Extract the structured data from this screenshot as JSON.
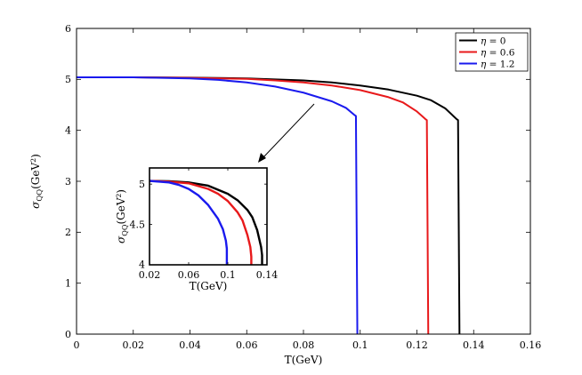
{
  "chart_data": [
    {
      "id": "main",
      "type": "line",
      "title": "",
      "xlabel": "T(GeV)",
      "ylabel": "σQQ(GeV²)",
      "ylabel_main": "σ",
      "ylabel_sub": "QQ",
      "ylabel_unit": "(GeV",
      "ylabel_sup": "2",
      "ylabel_close": ")",
      "xlim": [
        0,
        0.16
      ],
      "ylim": [
        0,
        6
      ],
      "xticks": [
        0,
        0.02,
        0.04,
        0.06,
        0.08,
        0.1,
        0.12,
        0.14,
        0.16
      ],
      "xtick_labels": [
        "0",
        "0.02",
        "0.04",
        "0.06",
        "0.08",
        "0.1",
        "0.12",
        "0.14",
        "0.16"
      ],
      "yticks": [
        0,
        1,
        2,
        3,
        4,
        5,
        6
      ],
      "ytick_labels": [
        "0",
        "1",
        "2",
        "3",
        "4",
        "5",
        "6"
      ],
      "legend": {
        "placement": "top-right",
        "entries": [
          {
            "prefix": "η",
            "text": " = 0",
            "color": "#000000"
          },
          {
            "prefix": "η",
            "text": " = 0.6",
            "color": "#e8191b"
          },
          {
            "prefix": "η",
            "text": " = 1.2",
            "color": "#1a1aee"
          }
        ]
      },
      "series": [
        {
          "name": "η = 0",
          "color": "#000000",
          "x": [
            0,
            0.02,
            0.04,
            0.06,
            0.08,
            0.09,
            0.1,
            0.11,
            0.12,
            0.125,
            0.13,
            0.134,
            0.1345,
            0.135
          ],
          "y": [
            5.04,
            5.04,
            5.035,
            5.02,
            4.98,
            4.94,
            4.88,
            4.8,
            4.68,
            4.59,
            4.43,
            4.22,
            4.2,
            0
          ]
        },
        {
          "name": "η = 0.6",
          "color": "#e8191b",
          "x": [
            0,
            0.02,
            0.04,
            0.06,
            0.07,
            0.08,
            0.09,
            0.1,
            0.11,
            0.115,
            0.12,
            0.123,
            0.1235,
            0.124
          ],
          "y": [
            5.04,
            5.04,
            5.03,
            5.01,
            4.98,
            4.94,
            4.88,
            4.79,
            4.65,
            4.55,
            4.37,
            4.22,
            4.2,
            0
          ]
        },
        {
          "name": "η = 1.2",
          "color": "#1a1aee",
          "x": [
            0,
            0.02,
            0.04,
            0.05,
            0.06,
            0.07,
            0.08,
            0.09,
            0.095,
            0.098,
            0.0985,
            0.099
          ],
          "y": [
            5.04,
            5.04,
            5.02,
            4.99,
            4.94,
            4.86,
            4.74,
            4.57,
            4.44,
            4.3,
            4.28,
            0
          ]
        }
      ]
    },
    {
      "id": "inset",
      "type": "line",
      "title": "",
      "xlabel": "T(GeV)",
      "ylabel_main": "σ",
      "ylabel_sub": "QQ",
      "ylabel_unit": "(GeV",
      "ylabel_sup": "2",
      "ylabel_close": ")",
      "xlim": [
        0.02,
        0.14
      ],
      "ylim": [
        4,
        5.2
      ],
      "xticks": [
        0.02,
        0.06,
        0.1,
        0.14
      ],
      "xtick_labels": [
        "0.02",
        "0.06",
        "0.1",
        "0.14"
      ],
      "yticks": [
        4,
        4.5,
        5
      ],
      "ytick_labels": [
        "4",
        "4.5",
        "5"
      ],
      "series": [
        {
          "name": "η = 0",
          "color": "#000000",
          "x": [
            0.02,
            0.04,
            0.06,
            0.08,
            0.1,
            0.11,
            0.12,
            0.125,
            0.13,
            0.134,
            0.135,
            0.135
          ],
          "y": [
            5.04,
            5.035,
            5.02,
            4.98,
            4.88,
            4.8,
            4.68,
            4.59,
            4.43,
            4.22,
            4.12,
            4.0
          ]
        },
        {
          "name": "η = 0.6",
          "color": "#e8191b",
          "x": [
            0.02,
            0.04,
            0.06,
            0.08,
            0.09,
            0.1,
            0.11,
            0.115,
            0.12,
            0.123,
            0.124,
            0.124
          ],
          "y": [
            5.04,
            5.03,
            5.01,
            4.94,
            4.88,
            4.79,
            4.65,
            4.55,
            4.37,
            4.22,
            4.1,
            4.0
          ]
        },
        {
          "name": "η = 1.2",
          "color": "#1a1aee",
          "x": [
            0.02,
            0.04,
            0.05,
            0.06,
            0.07,
            0.08,
            0.09,
            0.095,
            0.098,
            0.099,
            0.099
          ],
          "y": [
            5.04,
            5.02,
            4.99,
            4.94,
            4.86,
            4.74,
            4.57,
            4.44,
            4.3,
            4.2,
            4.0
          ]
        }
      ]
    }
  ]
}
